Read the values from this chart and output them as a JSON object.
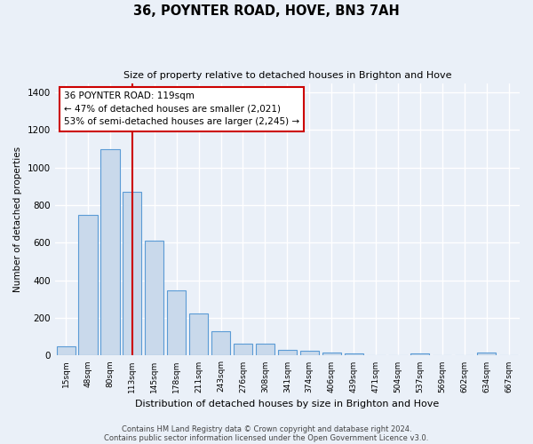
{
  "title": "36, POYNTER ROAD, HOVE, BN3 7AH",
  "subtitle": "Size of property relative to detached houses in Brighton and Hove",
  "xlabel": "Distribution of detached houses by size in Brighton and Hove",
  "ylabel": "Number of detached properties",
  "footer1": "Contains HM Land Registry data © Crown copyright and database right 2024.",
  "footer2": "Contains public sector information licensed under the Open Government Licence v3.0.",
  "categories": [
    "15sqm",
    "48sqm",
    "80sqm",
    "113sqm",
    "145sqm",
    "178sqm",
    "211sqm",
    "243sqm",
    "276sqm",
    "308sqm",
    "341sqm",
    "374sqm",
    "406sqm",
    "439sqm",
    "471sqm",
    "504sqm",
    "537sqm",
    "569sqm",
    "602sqm",
    "634sqm",
    "667sqm"
  ],
  "values": [
    50,
    750,
    1100,
    870,
    610,
    345,
    225,
    130,
    63,
    65,
    30,
    28,
    18,
    12,
    0,
    0,
    10,
    0,
    0,
    15,
    0
  ],
  "bar_color": "#c9d9eb",
  "bar_edge_color": "#5b9bd5",
  "annotation_text": "36 POYNTER ROAD: 119sqm\n← 47% of detached houses are smaller (2,021)\n53% of semi-detached houses are larger (2,245) →",
  "vline_x_index": 3,
  "vline_color": "#cc0000",
  "annotation_box_facecolor": "#ffffff",
  "annotation_box_edgecolor": "#cc0000",
  "bg_color": "#eaf0f8",
  "plot_bg_color": "#eaf0f8",
  "grid_color": "#ffffff",
  "ylim": [
    0,
    1450
  ],
  "yticks": [
    0,
    200,
    400,
    600,
    800,
    1000,
    1200,
    1400
  ]
}
